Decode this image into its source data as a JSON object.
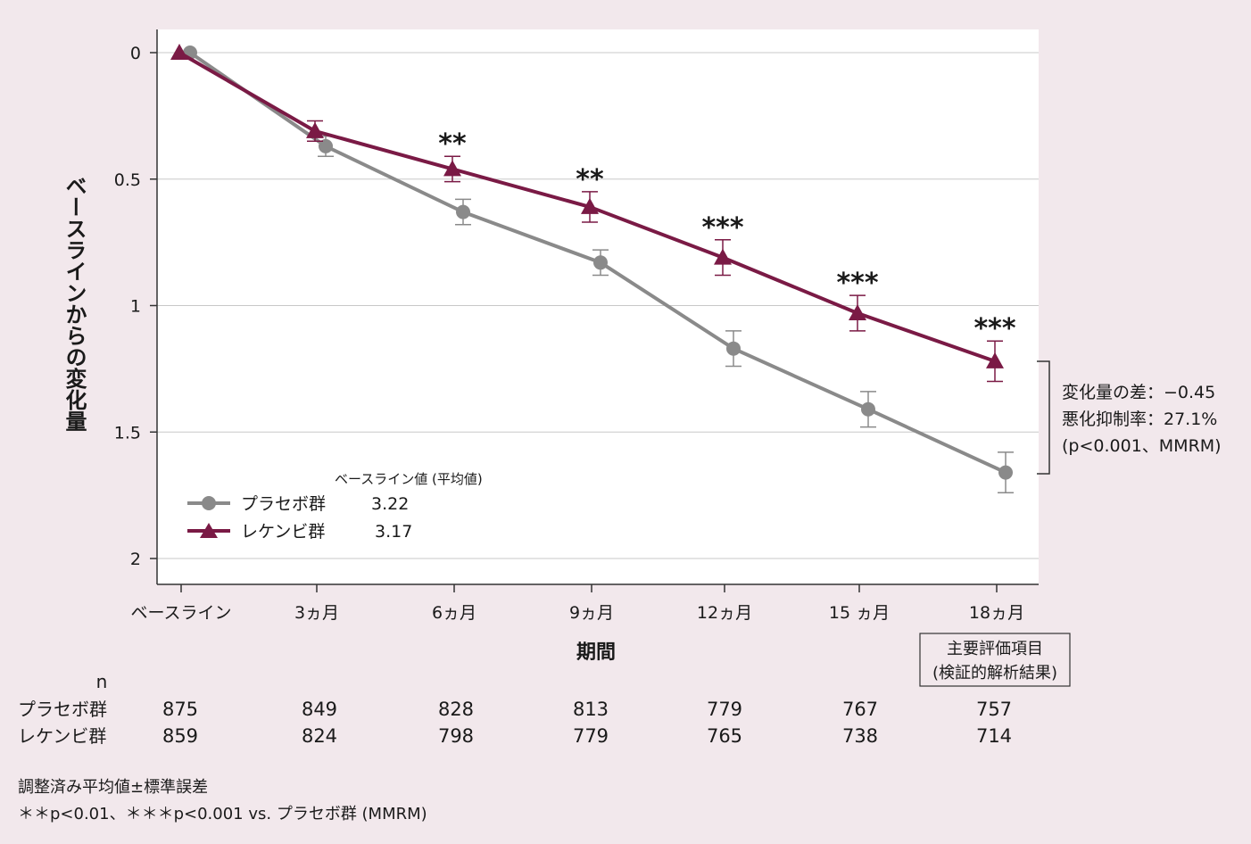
{
  "chart_data": {
    "type": "line",
    "ylabel": "ベースラインからの変化量",
    "xlabel": "期間",
    "ylim": [
      2.1,
      0
    ],
    "y_inverted": true,
    "grid": true,
    "yticks": [
      "0",
      "0.5",
      "1",
      "1.5",
      "2"
    ],
    "categories": [
      "ベースライン",
      "3ヵ月",
      "6ヵ月",
      "9ヵ月",
      "12ヵ月",
      "15 ヵ月",
      "18ヵ月"
    ],
    "series": [
      {
        "name": "プラセボ群",
        "baseline_mean": "3.22",
        "color": "#8a8a8a",
        "marker": "circle",
        "values": [
          0,
          0.37,
          0.63,
          0.83,
          1.17,
          1.41,
          1.66
        ],
        "se": [
          0,
          0.04,
          0.05,
          0.05,
          0.07,
          0.07,
          0.08
        ]
      },
      {
        "name": "レケンビ群",
        "baseline_mean": "3.17",
        "color": "#7a1a45",
        "marker": "triangle",
        "values": [
          0,
          0.31,
          0.46,
          0.61,
          0.81,
          1.03,
          1.22
        ],
        "se": [
          0,
          0.04,
          0.05,
          0.06,
          0.07,
          0.07,
          0.08
        ]
      }
    ],
    "significance": [
      "",
      "",
      "**",
      "**",
      "***",
      "***",
      "***"
    ],
    "legend": {
      "title": "ベースライン値 (平均値)",
      "position": "bottom-left"
    },
    "annotation": [
      "変化量の差：−0.45",
      "悪化抑制率：27.1%",
      "(p<0.001、MMRM)"
    ],
    "endpoint_box": [
      "主要評価項目",
      "(検証的解析結果)"
    ],
    "n_table": {
      "header": "n",
      "rows": [
        {
          "label": "プラセボ群",
          "values": [
            "875",
            "849",
            "828",
            "813",
            "779",
            "767",
            "757"
          ]
        },
        {
          "label": "レケンビ群",
          "values": [
            "859",
            "824",
            "798",
            "779",
            "765",
            "738",
            "714"
          ]
        }
      ]
    },
    "footnotes": [
      "調整済み平均値±標準誤差",
      "＊＊p<0.01、＊＊＊p<0.001 vs. プラセボ群 (MMRM)"
    ]
  }
}
